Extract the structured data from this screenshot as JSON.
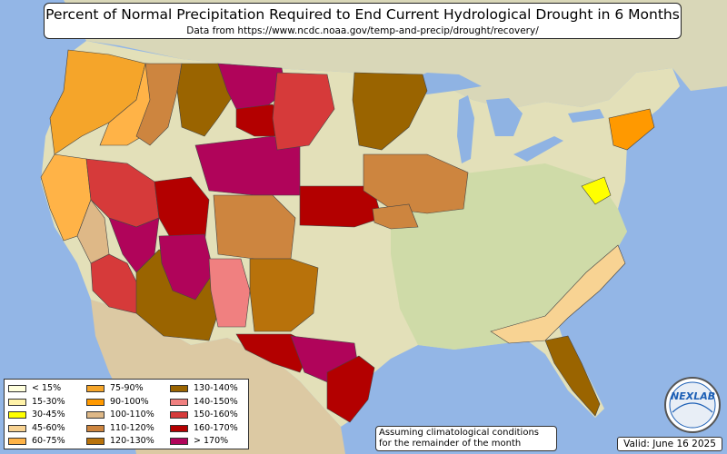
{
  "title": "Percent of Normal Precipitation Required to End Current Hydrological Drought in 6 Months",
  "subtitle": "Data from https://www.ncdc.noaa.gov/temp-and-precip/drought/recovery/",
  "note_line1": "Assuming climatological conditions",
  "note_line2": "for the remainder of the month",
  "valid": "Valid: June 16 2025",
  "logo_text": "NEXLAB",
  "colors": {
    "ocean": "#93b6e6",
    "land": "#e3e0b9",
    "land_green": "#c9d9a4",
    "canada": "#d9d7b8",
    "mexico": "#dcc9a3",
    "lakes": "#8fb3e3"
  },
  "legend": [
    {
      "label": "< 15%",
      "color": "#ffffdd"
    },
    {
      "label": "15-30%",
      "color": "#fff2a8"
    },
    {
      "label": "30-45%",
      "color": "#ffff00"
    },
    {
      "label": "45-60%",
      "color": "#f8d393"
    },
    {
      "label": "60-75%",
      "color": "#ffb347"
    },
    {
      "label": "75-90%",
      "color": "#f5a52a"
    },
    {
      "label": "90-100%",
      "color": "#ff9900"
    },
    {
      "label": "100-110%",
      "color": "#deb887"
    },
    {
      "label": "110-120%",
      "color": "#cd853f"
    },
    {
      "label": "120-130%",
      "color": "#b8720b"
    },
    {
      "label": "130-140%",
      "color": "#9a6400"
    },
    {
      "label": "140-150%",
      "color": "#f08080"
    },
    {
      "label": "150-160%",
      "color": "#d63a3a"
    },
    {
      "label": "160-170%",
      "color": "#b30000"
    },
    {
      "label": "> 170%",
      "color": "#b0045a"
    }
  ],
  "regions": [
    {
      "name": "pnw-coast",
      "color": "#f5a52a"
    },
    {
      "name": "oregon-east",
      "color": "#ffb347"
    },
    {
      "name": "idaho-north",
      "color": "#cd853f"
    },
    {
      "name": "montana-west",
      "color": "#9a6400"
    },
    {
      "name": "montana-central",
      "color": "#b0045a"
    },
    {
      "name": "montana-wyoming",
      "color": "#b30000"
    },
    {
      "name": "california-north",
      "color": "#ffb347"
    },
    {
      "name": "california-central",
      "color": "#deb887"
    },
    {
      "name": "california-south",
      "color": "#d63a3a"
    },
    {
      "name": "nevada-west",
      "color": "#d63a3a"
    },
    {
      "name": "nevada-south",
      "color": "#b0045a"
    },
    {
      "name": "utah",
      "color": "#b30000"
    },
    {
      "name": "colorado-wyoming",
      "color": "#b0045a"
    },
    {
      "name": "colorado-west",
      "color": "#cd853f"
    },
    {
      "name": "arizona",
      "color": "#9a6400"
    },
    {
      "name": "arizona-north",
      "color": "#b0045a"
    },
    {
      "name": "new-mexico-west",
      "color": "#f08080"
    },
    {
      "name": "new-mexico-east",
      "color": "#b8720b"
    },
    {
      "name": "texas-west",
      "color": "#b30000"
    },
    {
      "name": "texas-central",
      "color": "#b0045a"
    },
    {
      "name": "texas-east",
      "color": "#b30000"
    },
    {
      "name": "kansas-nebraska",
      "color": "#b30000"
    },
    {
      "name": "south-dakota",
      "color": "#d63a3a"
    },
    {
      "name": "minnesota-wisconsin",
      "color": "#9a6400"
    },
    {
      "name": "iowa-illinois",
      "color": "#cd853f"
    },
    {
      "name": "missouri",
      "color": "#cd853f"
    },
    {
      "name": "florida",
      "color": "#9a6400"
    },
    {
      "name": "georgia-carolinas",
      "color": "#f8d393"
    },
    {
      "name": "mid-atlantic",
      "color": "#ffff00"
    },
    {
      "name": "new-england",
      "color": "#ff9900"
    }
  ]
}
